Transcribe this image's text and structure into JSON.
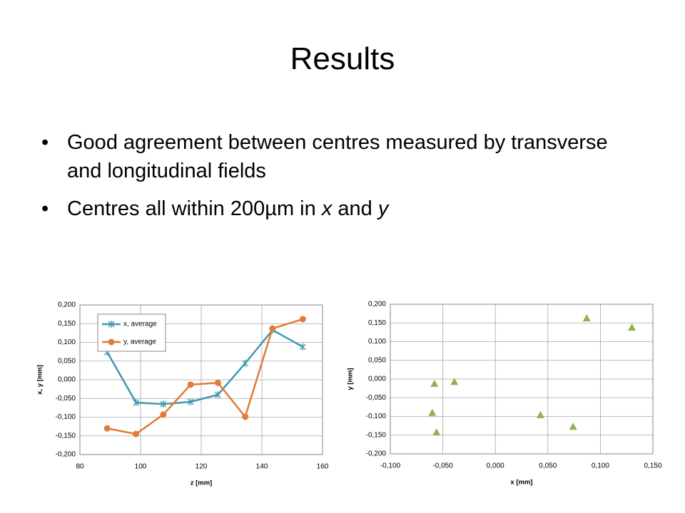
{
  "title": "Results",
  "bullets": [
    [
      {
        "text": "Good agreement between centres measured by transverse and longitudinal fields",
        "italic": false
      }
    ],
    [
      {
        "text": "Centres all within 200µm in ",
        "italic": false
      },
      {
        "text": "x",
        "italic": true
      },
      {
        "text": " and ",
        "italic": false
      },
      {
        "text": "y",
        "italic": true
      }
    ]
  ],
  "chart_data": [
    {
      "type": "line",
      "xlabel": "z [mm]",
      "ylabel": "x, y [mm]",
      "xlim": [
        80,
        160
      ],
      "xticks": [
        80,
        100,
        120,
        140,
        160
      ],
      "ylim": [
        -0.2,
        0.2
      ],
      "yticks": [
        {
          "value": -0.2,
          "label": "-0,200"
        },
        {
          "value": -0.15,
          "label": "-0,150"
        },
        {
          "value": -0.1,
          "label": "-0,100"
        },
        {
          "value": -0.05,
          "label": "-0,050"
        },
        {
          "value": 0,
          "label": "0,000"
        },
        {
          "value": 0.05,
          "label": "0,050"
        },
        {
          "value": 0.1,
          "label": "0,100"
        },
        {
          "value": 0.15,
          "label": "0,150"
        },
        {
          "value": 0.2,
          "label": "0,200"
        }
      ],
      "grid": true,
      "legend": "upper left",
      "x": [
        89,
        98.5,
        107.5,
        116.5,
        125.5,
        134.5,
        143.5,
        153.5
      ],
      "series": [
        {
          "name": "x, average",
          "color": "#4198af",
          "marker": "star",
          "values": [
            0.074,
            -0.061,
            -0.065,
            -0.059,
            -0.04,
            0.044,
            0.133,
            0.088
          ]
        },
        {
          "name": "y, average",
          "color": "#e07b39",
          "marker": "circle",
          "values": [
            -0.13,
            -0.145,
            -0.093,
            -0.013,
            -0.008,
            -0.099,
            0.137,
            0.162
          ]
        }
      ]
    },
    {
      "type": "scatter",
      "xlabel": "x [mm]",
      "ylabel": "y [mm]",
      "xlim": [
        -0.1,
        0.15
      ],
      "xticks": [
        {
          "value": -0.1,
          "label": "-0,100"
        },
        {
          "value": -0.05,
          "label": "-0,050"
        },
        {
          "value": 0,
          "label": "0,000"
        },
        {
          "value": 0.05,
          "label": "0,050"
        },
        {
          "value": 0.1,
          "label": "0,100"
        },
        {
          "value": 0.15,
          "label": "0,150"
        }
      ],
      "ylim": [
        -0.2,
        0.2
      ],
      "yticks": [
        {
          "value": -0.2,
          "label": "-0,200"
        },
        {
          "value": -0.15,
          "label": "-0,150"
        },
        {
          "value": -0.1,
          "label": "-0,100"
        },
        {
          "value": -0.05,
          "label": "-0,050"
        },
        {
          "value": 0,
          "label": "0,000"
        },
        {
          "value": 0.05,
          "label": "0,050"
        },
        {
          "value": 0.1,
          "label": "0,100"
        },
        {
          "value": 0.15,
          "label": "0,150"
        },
        {
          "value": 0.2,
          "label": "0,200"
        }
      ],
      "grid": true,
      "color": "#8db34f",
      "marker": "triangle",
      "x": [
        -0.058,
        -0.039,
        -0.06,
        -0.056,
        0.043,
        0.074,
        0.087,
        0.13
      ],
      "values": [
        -0.013,
        -0.008,
        -0.091,
        -0.143,
        -0.097,
        -0.128,
        0.162,
        0.137
      ]
    }
  ]
}
